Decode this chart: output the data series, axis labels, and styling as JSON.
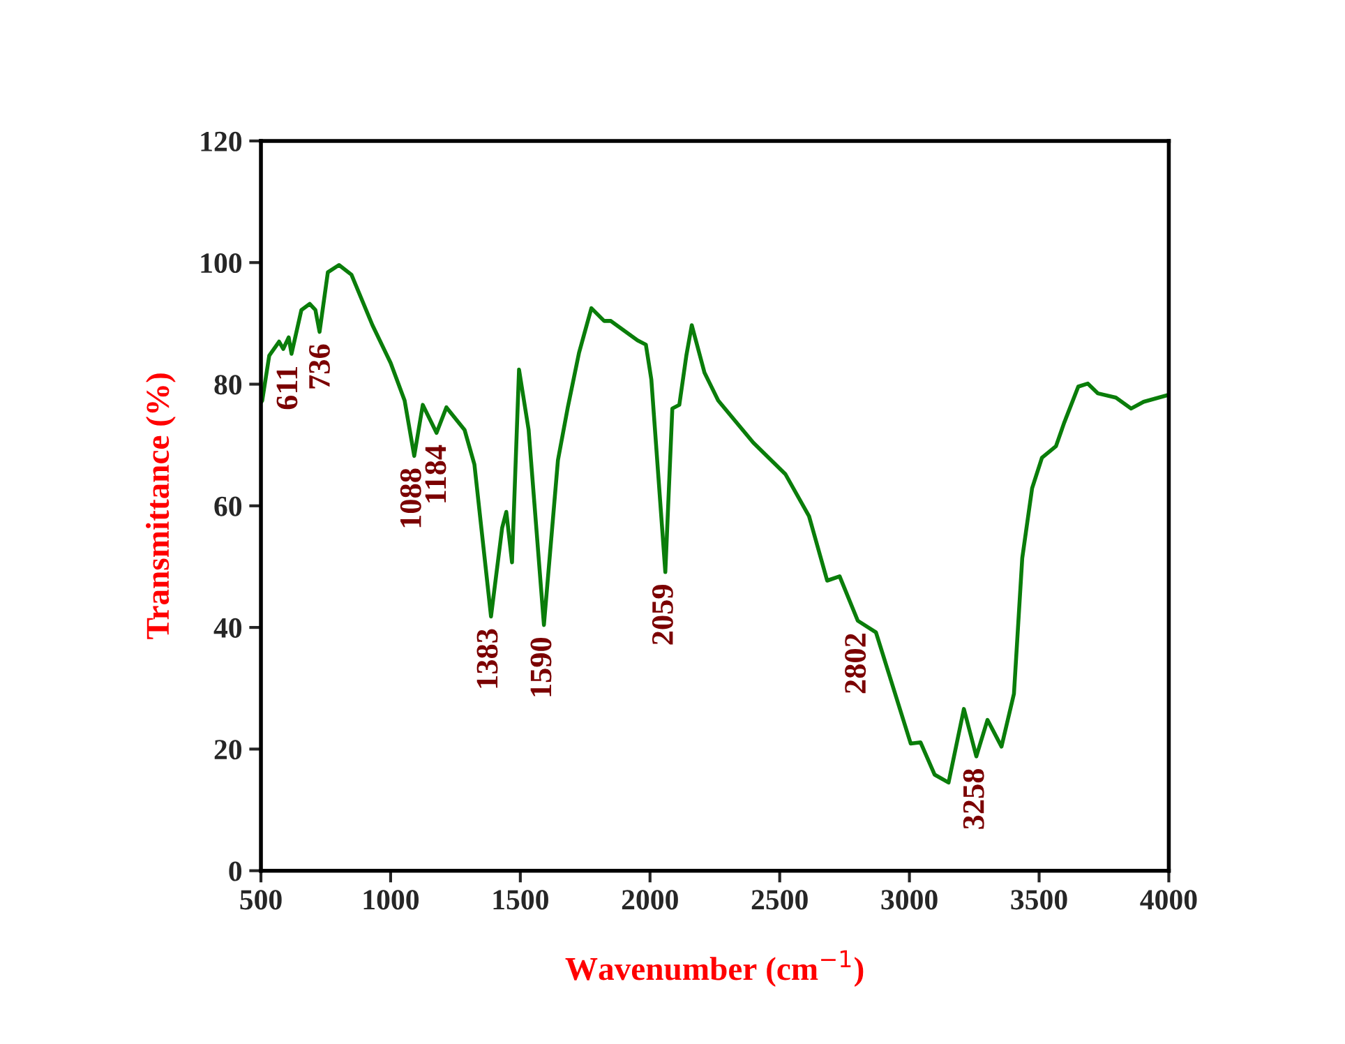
{
  "chart_data": {
    "type": "line",
    "xlabel": "Wavenumber (cm$^{−1}$)",
    "ylabel": "Transmittance (%)",
    "xlim": [
      500,
      4000
    ],
    "xticks": [
      500,
      1000,
      1500,
      2000,
      2500,
      3000,
      3500,
      4000
    ],
    "ylim": [
      0,
      120
    ],
    "yticks": [
      0,
      20,
      40,
      60,
      80,
      100,
      120
    ],
    "grid": false,
    "legend": false,
    "marker": "none",
    "line_style": "solid",
    "series": [
      {
        "color": "#0a7d0a",
        "x": [
          500,
          505,
          532,
          570,
          586,
          607,
          618,
          656,
          688,
          710,
          726,
          758,
          801,
          849,
          930,
          1000,
          1054,
          1091,
          1124,
          1177,
          1215,
          1285,
          1323,
          1387,
          1430,
          1446,
          1468,
          1495,
          1532,
          1591,
          1645,
          1683,
          1726,
          1774,
          1823,
          1849,
          1952,
          1984,
          2005,
          2059,
          2086,
          2113,
          2140,
          2161,
          2210,
          2263,
          2398,
          2522,
          2613,
          2683,
          2731,
          2801,
          2871,
          3005,
          3043,
          3097,
          3151,
          3210,
          3258,
          3301,
          3355,
          3403,
          3435,
          3473,
          3511,
          3565,
          3597,
          3651,
          3688,
          3726,
          3796,
          3855,
          3903,
          3995
        ],
        "values": [
          77,
          77.3,
          84.7,
          87,
          85.8,
          87.7,
          85,
          92.2,
          93.2,
          92.2,
          88.6,
          98.4,
          99.6,
          98,
          89.7,
          83.5,
          77.3,
          68.2,
          76.6,
          72,
          76.2,
          72.5,
          66.8,
          41.8,
          56.4,
          59,
          50.7,
          82.4,
          72.5,
          40.4,
          67.5,
          76.2,
          85.1,
          92.5,
          90.4,
          90.4,
          87.2,
          86.5,
          80.8,
          49.1,
          76,
          76.6,
          84.7,
          89.7,
          81.9,
          77.3,
          70.4,
          65.2,
          58.3,
          47.7,
          48.4,
          41.1,
          39.2,
          20.9,
          21.1,
          15.8,
          14.5,
          26.6,
          18.8,
          24.8,
          20.4,
          29.1,
          51.4,
          62.9,
          67.9,
          69.8,
          73.7,
          79.6,
          80.1,
          78.5,
          77.8,
          76,
          77.1,
          78.2
        ]
      }
    ],
    "annotations": [
      {
        "text": "611",
        "x": 611,
        "y": 85
      },
      {
        "text": "736",
        "x": 736,
        "y": 88.6
      },
      {
        "text": "1088",
        "x": 1088,
        "y": 68.2
      },
      {
        "text": "1184",
        "x": 1184,
        "y": 72
      },
      {
        "text": "1383",
        "x": 1383,
        "y": 41.8
      },
      {
        "text": "1590",
        "x": 1590,
        "y": 40.4
      },
      {
        "text": "2059",
        "x": 2059,
        "y": 49.1
      },
      {
        "text": "2802",
        "x": 2802,
        "y": 41.1
      },
      {
        "text": "3258",
        "x": 3258,
        "y": 18.8
      }
    ]
  }
}
